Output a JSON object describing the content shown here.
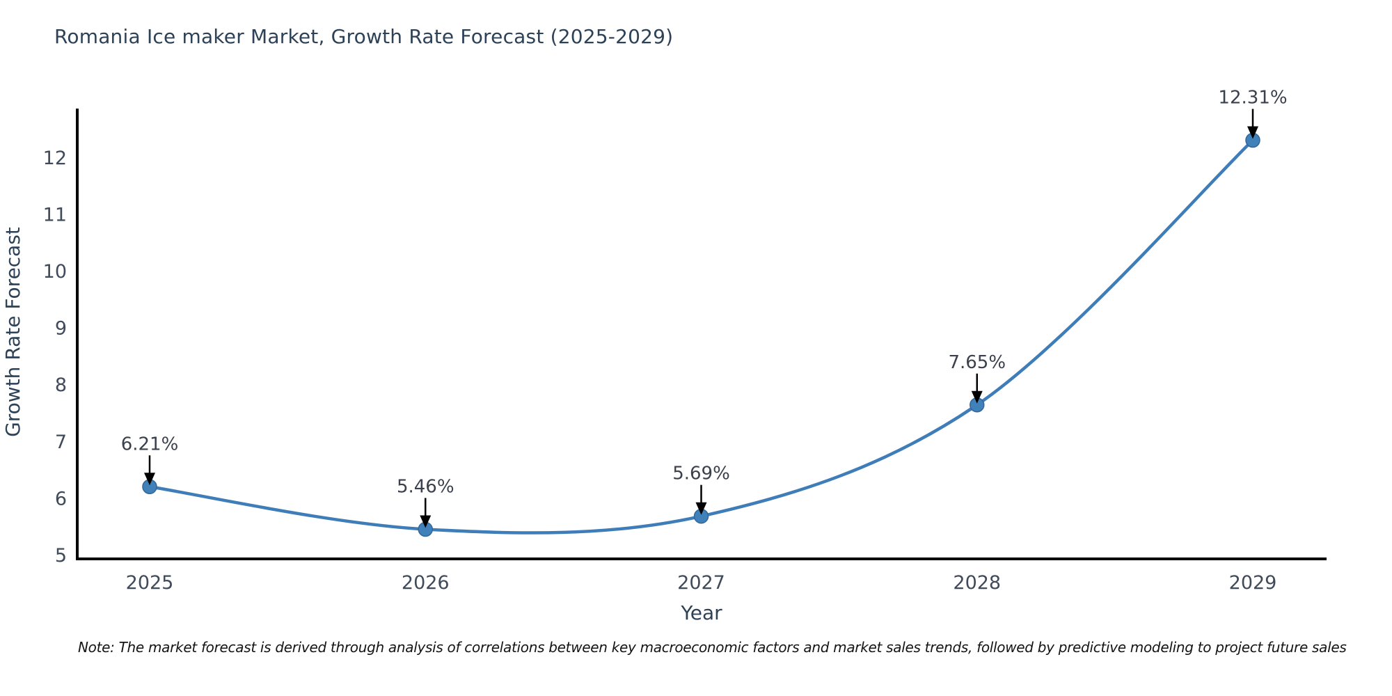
{
  "title": "Romania Ice maker Market, Growth Rate Forecast (2025-2029)",
  "note": "Note: The market forecast is derived through analysis of correlations between key macroeconomic factors and market sales trends, followed by predictive modeling to project future sales",
  "chart_data": {
    "type": "line",
    "title": "Romania Ice maker Market, Growth Rate Forecast (2025-2029)",
    "x": [
      2025,
      2026,
      2027,
      2028,
      2029
    ],
    "values": [
      6.21,
      5.46,
      5.69,
      7.65,
      12.31
    ],
    "point_labels": [
      "6.21%",
      "5.46%",
      "5.69%",
      "7.65%",
      "12.31%"
    ],
    "xlabel": "Year",
    "ylabel": "Growth Rate Forecast",
    "yticks": [
      5,
      6,
      7,
      8,
      9,
      10,
      11,
      12
    ],
    "ylim": [
      4.95,
      12.9
    ],
    "grid": false,
    "legend": "none",
    "line_color": "#3f7db8",
    "marker_color": "#4181ba",
    "marker_edge_color": "#336699",
    "axis_color": "#000000",
    "annotation_color": "#3a414d",
    "tick_color": "#3f4a5a",
    "axis_title_color": "#2d4257"
  }
}
